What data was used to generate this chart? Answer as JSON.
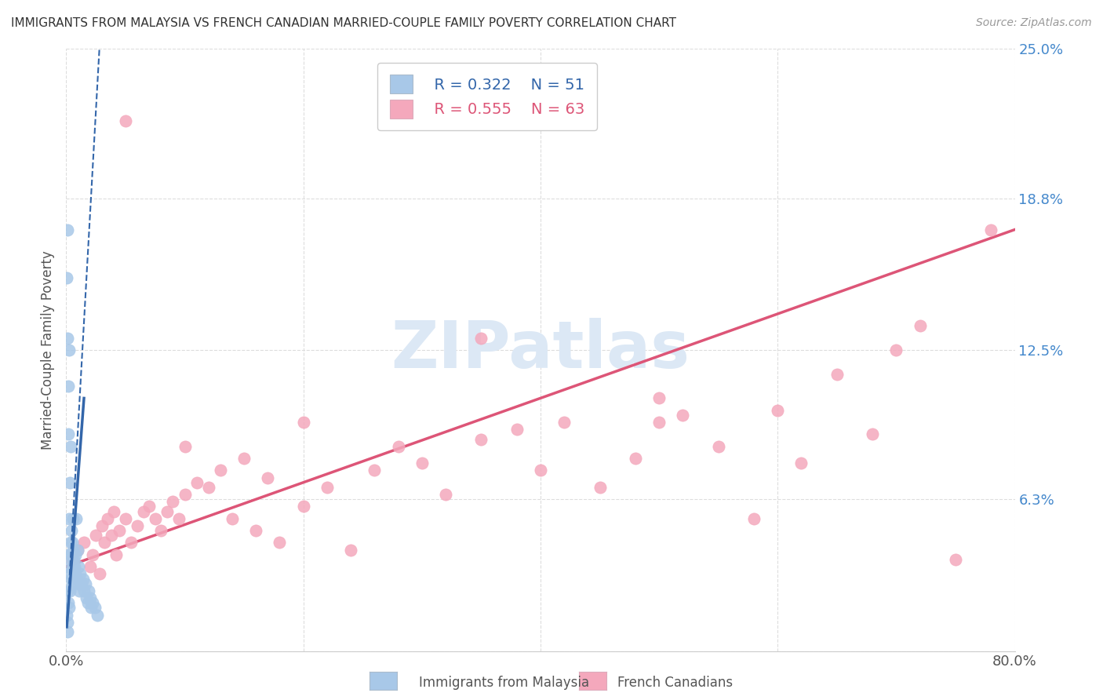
{
  "title": "IMMIGRANTS FROM MALAYSIA VS FRENCH CANADIAN MARRIED-COUPLE FAMILY POVERTY CORRELATION CHART",
  "source": "Source: ZipAtlas.com",
  "ylabel": "Married-Couple Family Poverty",
  "xlim": [
    0,
    80
  ],
  "ylim": [
    0,
    25
  ],
  "ytick_vals": [
    0,
    6.3,
    12.5,
    18.8,
    25.0
  ],
  "ytick_labels": [
    "",
    "6.3%",
    "12.5%",
    "18.8%",
    "25.0%"
  ],
  "xtick_vals": [
    0,
    20,
    40,
    60,
    80
  ],
  "xtick_labels": [
    "0.0%",
    "",
    "",
    "",
    "80.0%"
  ],
  "series1_color": "#a8c8e8",
  "series2_color": "#f4a8bc",
  "series1_label": "Immigrants from Malaysia",
  "series2_label": "French Canadians",
  "series1_R": "0.322",
  "series1_N": "51",
  "series2_R": "0.555",
  "series2_N": "63",
  "trendline1_color": "#3366aa",
  "trendline2_color": "#dd5577",
  "background_color": "#ffffff",
  "tick_color": "#4488cc",
  "watermark_color": "#dce8f5",
  "legend_border_color": "#cccccc",
  "grid_color": "#dddddd",
  "series1_x": [
    0.05,
    0.08,
    0.1,
    0.12,
    0.15,
    0.18,
    0.2,
    0.22,
    0.25,
    0.28,
    0.3,
    0.32,
    0.35,
    0.38,
    0.4,
    0.42,
    0.45,
    0.48,
    0.5,
    0.55,
    0.58,
    0.6,
    0.65,
    0.7,
    0.75,
    0.8,
    0.85,
    0.9,
    0.95,
    1.0,
    1.05,
    1.1,
    1.2,
    1.3,
    1.4,
    1.5,
    1.6,
    1.7,
    1.8,
    1.9,
    2.0,
    2.1,
    2.2,
    2.4,
    2.6,
    0.06,
    0.09,
    0.13,
    0.16,
    0.19,
    0.24
  ],
  "series1_y": [
    1.5,
    0.8,
    2.5,
    1.2,
    3.5,
    2.0,
    4.0,
    1.8,
    5.5,
    3.2,
    7.0,
    2.5,
    8.5,
    4.5,
    4.0,
    3.0,
    5.0,
    2.8,
    4.5,
    5.5,
    3.5,
    4.2,
    3.8,
    3.5,
    4.0,
    3.2,
    5.5,
    3.0,
    4.2,
    2.8,
    3.5,
    2.5,
    3.2,
    2.8,
    3.0,
    2.5,
    2.8,
    2.2,
    2.0,
    2.5,
    2.2,
    1.8,
    2.0,
    1.8,
    1.5,
    15.5,
    13.0,
    17.5,
    11.0,
    9.0,
    12.5
  ],
  "series2_x": [
    0.5,
    1.0,
    1.5,
    2.0,
    2.2,
    2.5,
    2.8,
    3.0,
    3.2,
    3.5,
    3.8,
    4.0,
    4.2,
    4.5,
    5.0,
    5.5,
    6.0,
    6.5,
    7.0,
    7.5,
    8.0,
    8.5,
    9.0,
    9.5,
    10.0,
    11.0,
    12.0,
    13.0,
    14.0,
    15.0,
    16.0,
    17.0,
    18.0,
    20.0,
    22.0,
    24.0,
    26.0,
    28.0,
    30.0,
    32.0,
    35.0,
    38.0,
    40.0,
    42.0,
    45.0,
    48.0,
    50.0,
    52.0,
    55.0,
    58.0,
    60.0,
    62.0,
    65.0,
    68.0,
    70.0,
    72.0,
    75.0,
    78.0,
    5.0,
    10.0,
    20.0,
    35.0,
    50.0
  ],
  "series2_y": [
    3.8,
    4.2,
    4.5,
    3.5,
    4.0,
    4.8,
    3.2,
    5.2,
    4.5,
    5.5,
    4.8,
    5.8,
    4.0,
    5.0,
    5.5,
    4.5,
    5.2,
    5.8,
    6.0,
    5.5,
    5.0,
    5.8,
    6.2,
    5.5,
    6.5,
    7.0,
    6.8,
    7.5,
    5.5,
    8.0,
    5.0,
    7.2,
    4.5,
    6.0,
    6.8,
    4.2,
    7.5,
    8.5,
    7.8,
    6.5,
    8.8,
    9.2,
    7.5,
    9.5,
    6.8,
    8.0,
    10.5,
    9.8,
    8.5,
    5.5,
    10.0,
    7.8,
    11.5,
    9.0,
    12.5,
    13.5,
    3.8,
    17.5,
    22.0,
    8.5,
    9.5,
    13.0,
    9.5
  ],
  "trendline2_x0": 0,
  "trendline2_y0": 3.5,
  "trendline2_x1": 80,
  "trendline2_y1": 17.5,
  "trendline1_solid_x0": 0.05,
  "trendline1_solid_y0": 1.0,
  "trendline1_solid_x1": 1.5,
  "trendline1_solid_y1": 10.5,
  "trendline1_dash_x0": 0.05,
  "trendline1_dash_y0": 1.0,
  "trendline1_dash_x1": 2.8,
  "trendline1_dash_y1": 25.0
}
